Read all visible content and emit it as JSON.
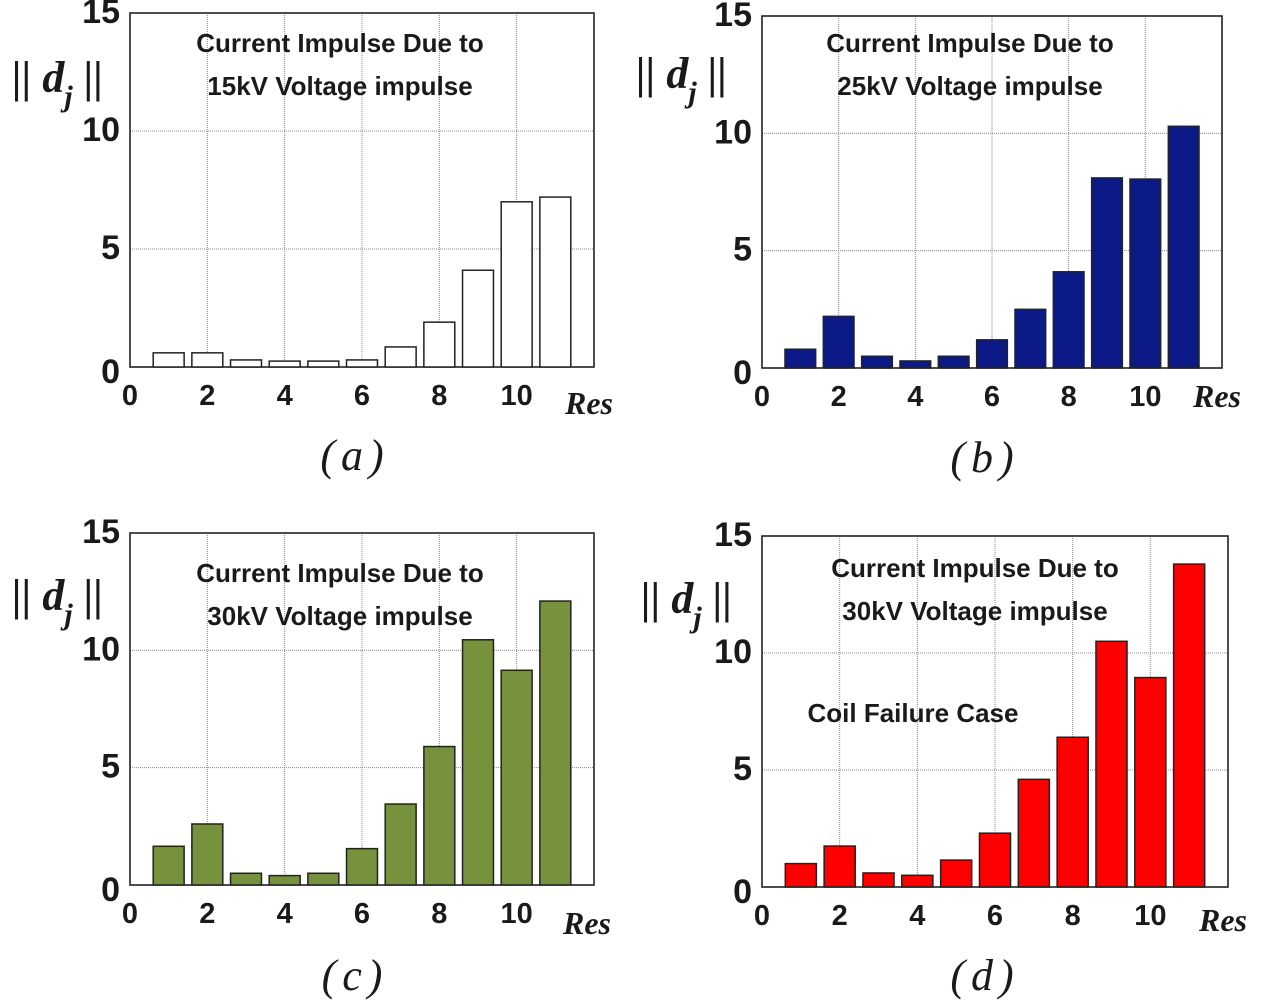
{
  "chart_data": [
    {
      "type": "bar",
      "caption": "(a)",
      "ylabel_parts": [
        "||",
        "d",
        "j",
        "||"
      ],
      "xlabel": "Res",
      "annotations": [
        "Current Impulse Due to",
        "15kV Voltage impulse"
      ],
      "x": [
        1,
        2,
        3,
        4,
        5,
        6,
        7,
        8,
        9,
        10,
        11
      ],
      "values": [
        0.6,
        0.6,
        0.3,
        0.25,
        0.25,
        0.3,
        0.85,
        1.9,
        4.1,
        7.0,
        7.2
      ],
      "xlim": [
        0,
        12
      ],
      "ylim": [
        0,
        15
      ],
      "xticks": [
        0,
        2,
        4,
        6,
        8,
        10
      ],
      "yticks": [
        0,
        5,
        10,
        15
      ],
      "grid": true,
      "color": "#ffffff"
    },
    {
      "type": "bar",
      "caption": "(b)",
      "ylabel_parts": [
        "||",
        "d",
        "j",
        "||"
      ],
      "xlabel": "Res",
      "annotations": [
        "Current Impulse Due to",
        "25kV Voltage impulse"
      ],
      "x": [
        1,
        2,
        3,
        4,
        5,
        6,
        7,
        8,
        9,
        10,
        11
      ],
      "values": [
        0.8,
        2.2,
        0.5,
        0.3,
        0.5,
        1.2,
        2.5,
        4.1,
        8.1,
        8.05,
        10.3
      ],
      "xlim": [
        0,
        12
      ],
      "ylim": [
        0,
        15
      ],
      "xticks": [
        0,
        2,
        4,
        6,
        8,
        10
      ],
      "yticks": [
        0,
        5,
        10,
        15
      ],
      "grid": true,
      "color": "#0b1a86"
    },
    {
      "type": "bar",
      "caption": "(c)",
      "ylabel_parts": [
        "||",
        "d",
        "j",
        "||"
      ],
      "xlabel": "Res",
      "annotations": [
        "Current Impulse Due to",
        "30kV Voltage impulse"
      ],
      "x": [
        1,
        2,
        3,
        4,
        5,
        6,
        7,
        8,
        9,
        10,
        11
      ],
      "values": [
        1.65,
        2.6,
        0.5,
        0.4,
        0.5,
        1.55,
        3.45,
        5.9,
        10.45,
        9.15,
        12.1
      ],
      "xlim": [
        0,
        12
      ],
      "ylim": [
        0,
        15
      ],
      "xticks": [
        0,
        2,
        4,
        6,
        8,
        10
      ],
      "yticks": [
        0,
        5,
        10,
        15
      ],
      "grid": true,
      "color": "#76923c"
    },
    {
      "type": "bar",
      "caption": "(d)",
      "ylabel_parts": [
        "||",
        "d",
        "j",
        "||"
      ],
      "xlabel": "Res",
      "annotations": [
        "Current Impulse Due to",
        "30kV Voltage impulse",
        "Coil Failure Case"
      ],
      "x": [
        1,
        2,
        3,
        4,
        5,
        6,
        7,
        8,
        9,
        10,
        11
      ],
      "values": [
        1.0,
        1.75,
        0.6,
        0.5,
        1.15,
        2.3,
        4.6,
        6.4,
        10.5,
        8.95,
        13.8
      ],
      "xlim": [
        0,
        12
      ],
      "ylim": [
        0,
        15
      ],
      "xticks": [
        0,
        2,
        4,
        6,
        8,
        10
      ],
      "yticks": [
        0,
        5,
        10,
        15
      ],
      "grid": true,
      "color": "#ff0000"
    }
  ]
}
